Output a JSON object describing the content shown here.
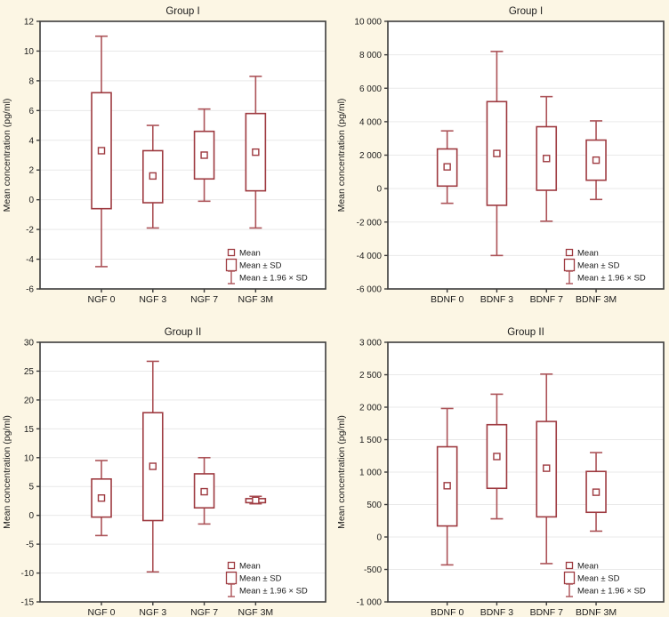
{
  "figure": {
    "background": "#FCF6E4",
    "palette": {
      "box_stroke": "#9E3A40",
      "whisker_stroke": "#AC5358",
      "mean_stroke": "#9E3A40",
      "plot_bg": "#FFFFFF",
      "grid": "#E9E9E9",
      "frame": "#3C3C3C",
      "text": "#1C1C1C"
    },
    "legend": {
      "position": "bottom-right",
      "items": [
        {
          "symbol": "mean-square-icon",
          "label": "Mean"
        },
        {
          "symbol": "sd-box-icon",
          "label": "Mean ± SD"
        },
        {
          "symbol": "whisker-icon",
          "label": "Mean ± 1.96 × SD"
        }
      ]
    }
  },
  "chart_data": [
    {
      "type": "box",
      "title": "Group I",
      "ylabel": "Mean concentration (pg/ml)",
      "xlabel": "",
      "ylim": [
        -6,
        12
      ],
      "grid": "horizontal",
      "yticks": [
        -6,
        -4,
        -2,
        0,
        2,
        4,
        6,
        8,
        10,
        12
      ],
      "ytick_labels": [
        "-6",
        "-4",
        "-2",
        "0",
        "2",
        "4",
        "6",
        "8",
        "10",
        "12"
      ],
      "categories": [
        "NGF 0",
        "NGF 3",
        "NGF 7",
        "NGF 3M"
      ],
      "series": [
        {
          "category": "NGF 0",
          "mean": 3.3,
          "sd_low": -0.6,
          "sd_high": 7.2,
          "w_low": -4.5,
          "w_high": 11.0
        },
        {
          "category": "NGF 3",
          "mean": 1.6,
          "sd_low": -0.2,
          "sd_high": 3.3,
          "w_low": -1.9,
          "w_high": 5.0
        },
        {
          "category": "NGF 7",
          "mean": 3.0,
          "sd_low": 1.4,
          "sd_high": 4.6,
          "w_low": -0.1,
          "w_high": 6.1
        },
        {
          "category": "NGF 3M",
          "mean": 3.2,
          "sd_low": 0.6,
          "sd_high": 5.8,
          "w_low": -1.9,
          "w_high": 8.3
        }
      ]
    },
    {
      "type": "box",
      "title": "Group I",
      "ylabel": "Mean concentration (pg/ml)",
      "xlabel": "",
      "ylim": [
        -6000,
        10000
      ],
      "grid": "horizontal",
      "yticks": [
        -6000,
        -4000,
        -2000,
        0,
        2000,
        4000,
        6000,
        8000,
        10000
      ],
      "ytick_labels": [
        "-6 000",
        "-4 000",
        "-2 000",
        "0",
        "2 000",
        "4 000",
        "6 000",
        "8 000",
        "10 000"
      ],
      "categories": [
        "BDNF 0",
        "BDNF 3",
        "BDNF 7",
        "BDNF 3M"
      ],
      "series": [
        {
          "category": "BDNF 0",
          "mean": 1300,
          "sd_low": 150,
          "sd_high": 2370,
          "w_low": -880,
          "w_high": 3450
        },
        {
          "category": "BDNF 3",
          "mean": 2100,
          "sd_low": -1000,
          "sd_high": 5200,
          "w_low": -4000,
          "w_high": 8200
        },
        {
          "category": "BDNF 7",
          "mean": 1800,
          "sd_low": -100,
          "sd_high": 3700,
          "w_low": -1950,
          "w_high": 5500
        },
        {
          "category": "BDNF 3M",
          "mean": 1700,
          "sd_low": 500,
          "sd_high": 2900,
          "w_low": -650,
          "w_high": 4050
        }
      ]
    },
    {
      "type": "box",
      "title": "Group II",
      "ylabel": "Mean concentration (pg/ml)",
      "xlabel": "",
      "ylim": [
        -15,
        30
      ],
      "grid": "horizontal",
      "yticks": [
        -15,
        -10,
        -5,
        0,
        5,
        10,
        15,
        20,
        25,
        30
      ],
      "ytick_labels": [
        "-15",
        "-10",
        "-5",
        "0",
        "5",
        "10",
        "15",
        "20",
        "25",
        "30"
      ],
      "categories": [
        "NGF 0",
        "NGF 3",
        "NGF 7",
        "NGF 3M"
      ],
      "series": [
        {
          "category": "NGF 0",
          "mean": 3.0,
          "sd_low": -0.3,
          "sd_high": 6.3,
          "w_low": -3.5,
          "w_high": 9.5
        },
        {
          "category": "NGF 3",
          "mean": 8.5,
          "sd_low": -0.9,
          "sd_high": 17.8,
          "w_low": -9.8,
          "w_high": 26.7
        },
        {
          "category": "NGF 7",
          "mean": 4.1,
          "sd_low": 1.3,
          "sd_high": 7.2,
          "w_low": -1.5,
          "w_high": 10.0
        },
        {
          "category": "NGF 3M",
          "mean": 2.6,
          "sd_low": 2.2,
          "sd_high": 2.9,
          "w_low": 2.0,
          "w_high": 3.3
        }
      ]
    },
    {
      "type": "box",
      "title": "Group II",
      "ylabel": "Mean concentration (pg/ml)",
      "xlabel": "",
      "ylim": [
        -1000,
        3000
      ],
      "grid": "horizontal",
      "yticks": [
        -1000,
        -500,
        0,
        500,
        1000,
        1500,
        2000,
        2500,
        3000
      ],
      "ytick_labels": [
        "-1 000",
        "-500",
        "0",
        "500",
        "1 000",
        "1 500",
        "2 000",
        "2 500",
        "3 000"
      ],
      "categories": [
        "BDNF 0",
        "BDNF 3",
        "BDNF 7",
        "BDNF 3M"
      ],
      "series": [
        {
          "category": "BDNF 0",
          "mean": 790,
          "sd_low": 170,
          "sd_high": 1390,
          "w_low": -430,
          "w_high": 1980
        },
        {
          "category": "BDNF 3",
          "mean": 1240,
          "sd_low": 750,
          "sd_high": 1730,
          "w_low": 280,
          "w_high": 2200
        },
        {
          "category": "BDNF 7",
          "mean": 1060,
          "sd_low": 310,
          "sd_high": 1780,
          "w_low": -410,
          "w_high": 2510
        },
        {
          "category": "BDNF 3M",
          "mean": 690,
          "sd_low": 380,
          "sd_high": 1010,
          "w_low": 90,
          "w_high": 1300
        }
      ]
    }
  ]
}
